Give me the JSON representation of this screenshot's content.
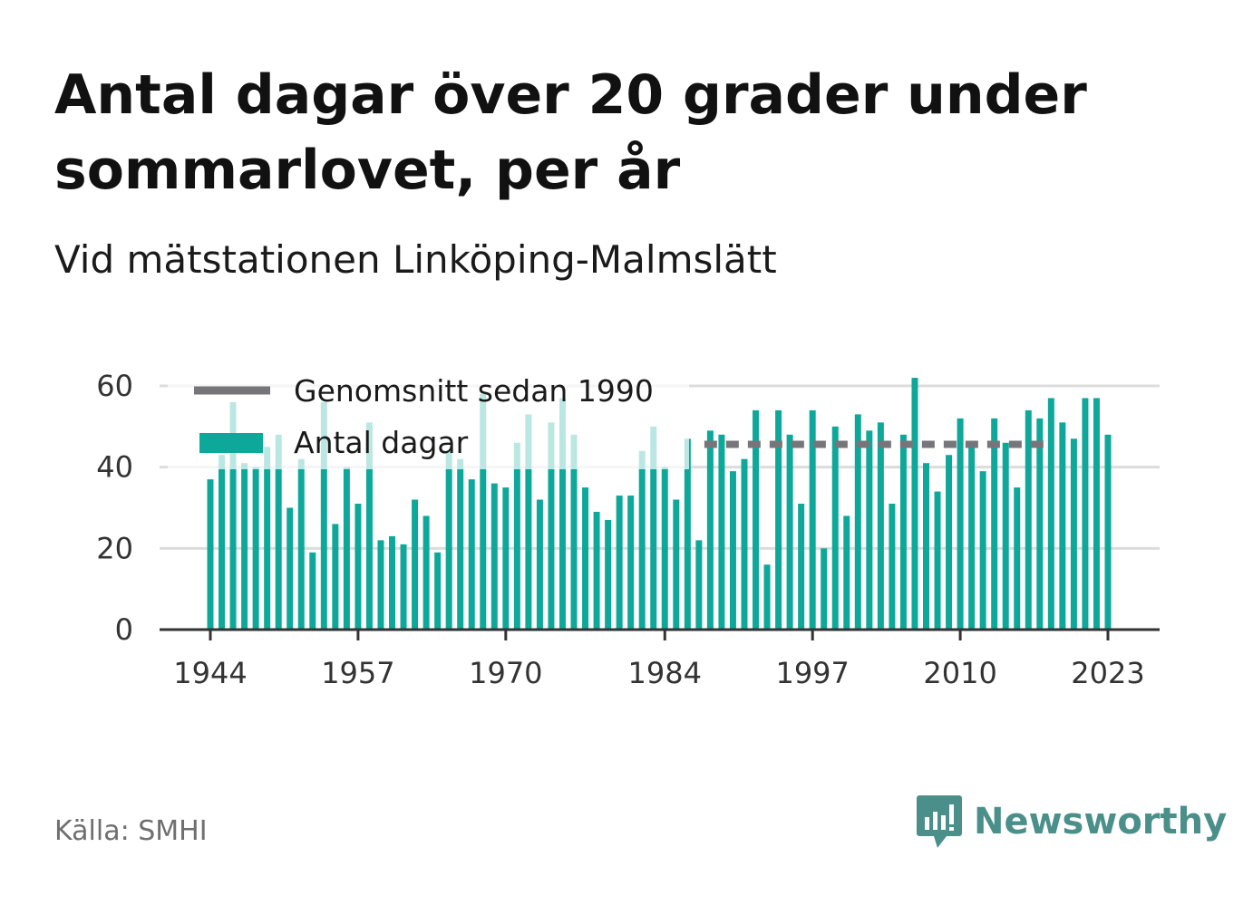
{
  "title": "Antal dagar över 20 grader under sommarlovet, per år",
  "subtitle": "Vid mätstationen Linköping-Malmslätt",
  "source": "Källa: SMHI",
  "brand": "Newsworthy",
  "colors": {
    "bar": "#0ea89b",
    "average": "#76767a",
    "grid": "#dcdcdc",
    "axis": "#333333"
  },
  "chart_data": {
    "type": "bar",
    "x": [
      1944,
      1945,
      1946,
      1947,
      1948,
      1949,
      1950,
      1951,
      1952,
      1953,
      1954,
      1955,
      1956,
      1957,
      1958,
      1959,
      1960,
      1961,
      1962,
      1963,
      1964,
      1965,
      1966,
      1967,
      1968,
      1969,
      1970,
      1971,
      1972,
      1973,
      1974,
      1975,
      1976,
      1977,
      1978,
      1979,
      1980,
      1981,
      1982,
      1983,
      1984,
      1985,
      1986,
      1987,
      1988,
      1989,
      1990,
      1991,
      1992,
      1993,
      1994,
      1995,
      1996,
      1997,
      1998,
      1999,
      2000,
      2001,
      2002,
      2003,
      2004,
      2005,
      2006,
      2007,
      2008,
      2009,
      2010,
      2011,
      2012,
      2013,
      2014,
      2015,
      2016,
      2017,
      2018,
      2019,
      2020,
      2021,
      2022,
      2023
    ],
    "series": [
      {
        "name": "Antal dagar",
        "values": [
          37,
          43,
          56,
          41,
          40,
          45,
          48,
          30,
          42,
          19,
          56,
          26,
          40,
          31,
          51,
          22,
          23,
          21,
          32,
          28,
          19,
          44,
          42,
          37,
          58,
          36,
          35,
          46,
          53,
          32,
          51,
          57,
          48,
          35,
          29,
          27,
          33,
          33,
          44,
          50,
          40,
          32,
          47,
          22,
          49,
          48,
          39,
          42,
          54,
          16,
          54,
          48,
          31,
          54,
          20,
          50,
          28,
          53,
          49,
          51,
          31,
          48,
          62,
          41,
          34,
          43,
          52,
          45,
          39,
          52,
          46,
          35,
          54,
          52,
          57,
          51,
          47,
          57,
          57,
          48
        ]
      },
      {
        "name": "Genomsnitt sedan 1990",
        "type": "line",
        "x_range": [
          1987,
          2017
        ],
        "value": 45.6
      }
    ],
    "x_ticks": [
      1944,
      1957,
      1970,
      1984,
      1997,
      2010,
      2023
    ],
    "y_ticks": [
      0,
      20,
      40,
      60
    ],
    "ylim": [
      0,
      62
    ],
    "grid": true,
    "legend": "top-left"
  }
}
